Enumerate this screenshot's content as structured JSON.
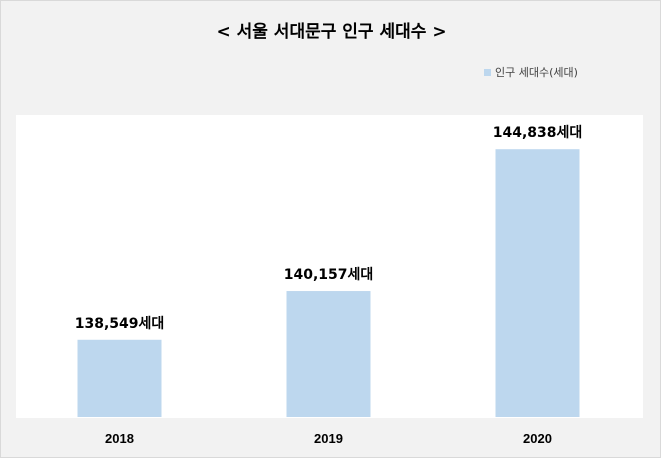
{
  "chart_data": {
    "type": "bar",
    "title": "< 서울 서대문구 인구 세대수 >",
    "categories": [
      "2018",
      "2019",
      "2020"
    ],
    "series": [
      {
        "name": "인구 세대수(세대)",
        "values": [
          138549,
          140157,
          144838
        ],
        "data_labels": [
          "138,549세대",
          "140,157세대",
          "144,838세대"
        ]
      }
    ],
    "ylim": [
      136000,
      146000
    ],
    "grid": false,
    "legend_position": "top-right",
    "colors": {
      "bar": "#bdd7ee",
      "background": "#f2f2f2",
      "plot_background": "#ffffff"
    }
  }
}
